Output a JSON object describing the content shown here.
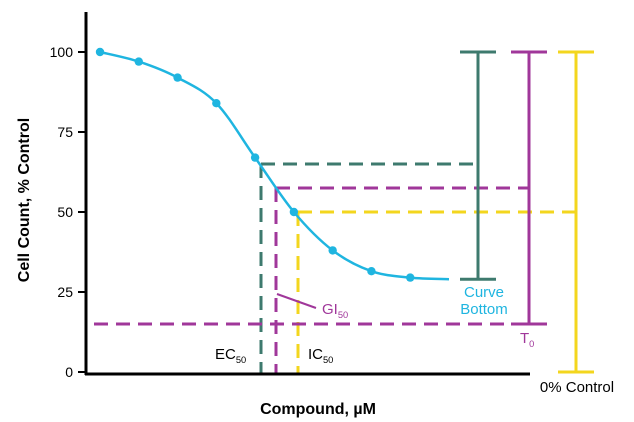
{
  "chart_data": {
    "type": "line",
    "xlabel": "Compound, µM",
    "ylabel": "Cell Count, % Control",
    "ylim": [
      0,
      113
    ],
    "y_ticks": [
      "0",
      "25",
      "50",
      "75",
      "100"
    ],
    "y_tick_values": [
      0,
      25,
      50,
      75,
      100
    ],
    "grid": false,
    "xlim": [
      0,
      10
    ],
    "series": [
      {
        "points": [
          {
            "x": 0.3,
            "y": 100
          },
          {
            "x": 1.35,
            "y": 97
          },
          {
            "x": 2.4,
            "y": 92
          },
          {
            "x": 3.45,
            "y": 84
          },
          {
            "x": 4.5,
            "y": 67
          },
          {
            "x": 5.55,
            "y": 50
          },
          {
            "x": 6.6,
            "y": 38
          },
          {
            "x": 7.65,
            "y": 31.5
          },
          {
            "x": 8.7,
            "y": 29.5
          },
          {
            "x": 9.75,
            "y": 29
          }
        ]
      }
    ],
    "markers": [
      {
        "id": "ec50",
        "x": 4.65,
        "y": 65,
        "label": "EC",
        "sub": "50",
        "color": "#3e7a6e"
      },
      {
        "id": "gi50",
        "x": 5.1,
        "y": 57.5,
        "label": "GI",
        "sub": "50",
        "color": "#a0379a"
      },
      {
        "id": "ic50",
        "x": 5.55,
        "y": 50,
        "label": "IC",
        "sub": "50",
        "color": "#f3d61e"
      }
    ],
    "ranges": [
      {
        "id": "curve-bottom",
        "top": 100,
        "bottom": 29,
        "label_lines": [
          "Curve",
          "Bottom"
        ],
        "color": "#3e7a6e"
      },
      {
        "id": "t0",
        "top": 100,
        "bottom": 15,
        "label": "T",
        "sub": "0",
        "color": "#a0379a"
      },
      {
        "id": "zero-control",
        "top": 100,
        "bottom": 0,
        "label": "0% Control",
        "color": "#f3d61e"
      }
    ],
    "t0_level": 15,
    "colors": {
      "curve": "#1fb5e0",
      "ec50": "#3e7a6e",
      "gi50": "#a0379a",
      "ic50": "#f3d61e",
      "axis": "#000000",
      "curve_label": "#1fb5e0"
    }
  }
}
